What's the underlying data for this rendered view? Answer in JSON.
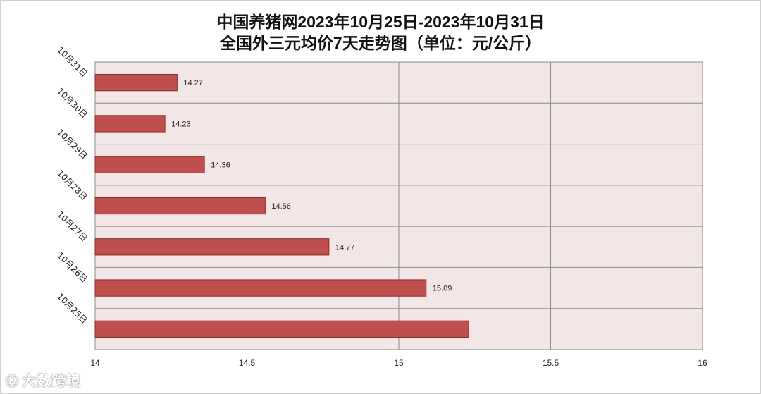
{
  "chart_data": {
    "type": "bar",
    "orientation": "horizontal",
    "title_line1": "中国养猪网2023年10月25日-2023年10月31日",
    "title_line2": "全国外三元均价7天走势图（单位：元/公斤）",
    "categories": [
      "10月31日",
      "10月30日",
      "10月29日",
      "10月28日",
      "10月27日",
      "10月26日",
      "10月25日"
    ],
    "values": [
      14.27,
      14.23,
      14.36,
      14.56,
      14.77,
      15.09,
      15.23
    ],
    "data_labels": [
      "14.27",
      "14.23",
      "14.36",
      "14.56",
      "14.77",
      "15.09",
      ""
    ],
    "xlim": [
      14,
      16
    ],
    "x_ticks": [
      "14",
      "14.5",
      "15",
      "15.5",
      "16"
    ],
    "x_tick_values": [
      14,
      14.5,
      15,
      15.5,
      16
    ],
    "grid": true,
    "colors": {
      "bar_fill": "#c0504d",
      "bar_stroke": "#8c2d2a",
      "plot_bg": "#f2e6e6",
      "grid": "#8c8c8c"
    }
  },
  "watermark": {
    "logo": "Ⓚ",
    "text": "大数跨境"
  }
}
